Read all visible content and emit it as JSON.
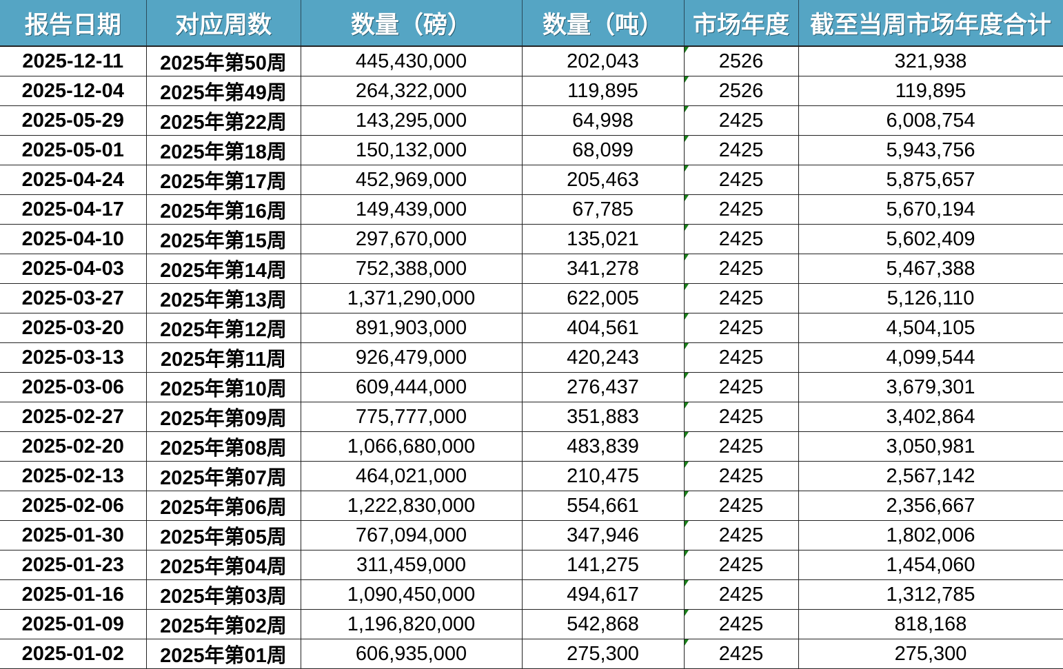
{
  "headers": [
    "报告日期",
    "对应周数",
    "数量（磅）",
    "数量（吨）",
    "市场年度",
    "截至当周市场年度合计"
  ],
  "colors": {
    "header_bg": "#55a5c4",
    "indicator": "#1a7f1a"
  },
  "rows": [
    [
      "2025-12-11",
      "2025年第50周",
      "445,430,000",
      "202,043",
      "2526",
      "321,938"
    ],
    [
      "2025-12-04",
      "2025年第49周",
      "264,322,000",
      "119,895",
      "2526",
      "119,895"
    ],
    [
      "2025-05-29",
      "2025年第22周",
      "143,295,000",
      "64,998",
      "2425",
      "6,008,754"
    ],
    [
      "2025-05-01",
      "2025年第18周",
      "150,132,000",
      "68,099",
      "2425",
      "5,943,756"
    ],
    [
      "2025-04-24",
      "2025年第17周",
      "452,969,000",
      "205,463",
      "2425",
      "5,875,657"
    ],
    [
      "2025-04-17",
      "2025年第16周",
      "149,439,000",
      "67,785",
      "2425",
      "5,670,194"
    ],
    [
      "2025-04-10",
      "2025年第15周",
      "297,670,000",
      "135,021",
      "2425",
      "5,602,409"
    ],
    [
      "2025-04-03",
      "2025年第14周",
      "752,388,000",
      "341,278",
      "2425",
      "5,467,388"
    ],
    [
      "2025-03-27",
      "2025年第13周",
      "1,371,290,000",
      "622,005",
      "2425",
      "5,126,110"
    ],
    [
      "2025-03-20",
      "2025年第12周",
      "891,903,000",
      "404,561",
      "2425",
      "4,504,105"
    ],
    [
      "2025-03-13",
      "2025年第11周",
      "926,479,000",
      "420,243",
      "2425",
      "4,099,544"
    ],
    [
      "2025-03-06",
      "2025年第10周",
      "609,444,000",
      "276,437",
      "2425",
      "3,679,301"
    ],
    [
      "2025-02-27",
      "2025年第09周",
      "775,777,000",
      "351,883",
      "2425",
      "3,402,864"
    ],
    [
      "2025-02-20",
      "2025年第08周",
      "1,066,680,000",
      "483,839",
      "2425",
      "3,050,981"
    ],
    [
      "2025-02-13",
      "2025年第07周",
      "464,021,000",
      "210,475",
      "2425",
      "2,567,142"
    ],
    [
      "2025-02-06",
      "2025年第06周",
      "1,222,830,000",
      "554,661",
      "2425",
      "2,356,667"
    ],
    [
      "2025-01-30",
      "2025年第05周",
      "767,094,000",
      "347,946",
      "2425",
      "1,802,006"
    ],
    [
      "2025-01-23",
      "2025年第04周",
      "311,459,000",
      "141,275",
      "2425",
      "1,454,060"
    ],
    [
      "2025-01-16",
      "2025年第03周",
      "1,090,450,000",
      "494,617",
      "2425",
      "1,312,785"
    ],
    [
      "2025-01-09",
      "2025年第02周",
      "1,196,820,000",
      "542,868",
      "2425",
      "818,168"
    ],
    [
      "2025-01-02",
      "2025年第01周",
      "606,935,000",
      "275,300",
      "2425",
      "275,300"
    ]
  ]
}
